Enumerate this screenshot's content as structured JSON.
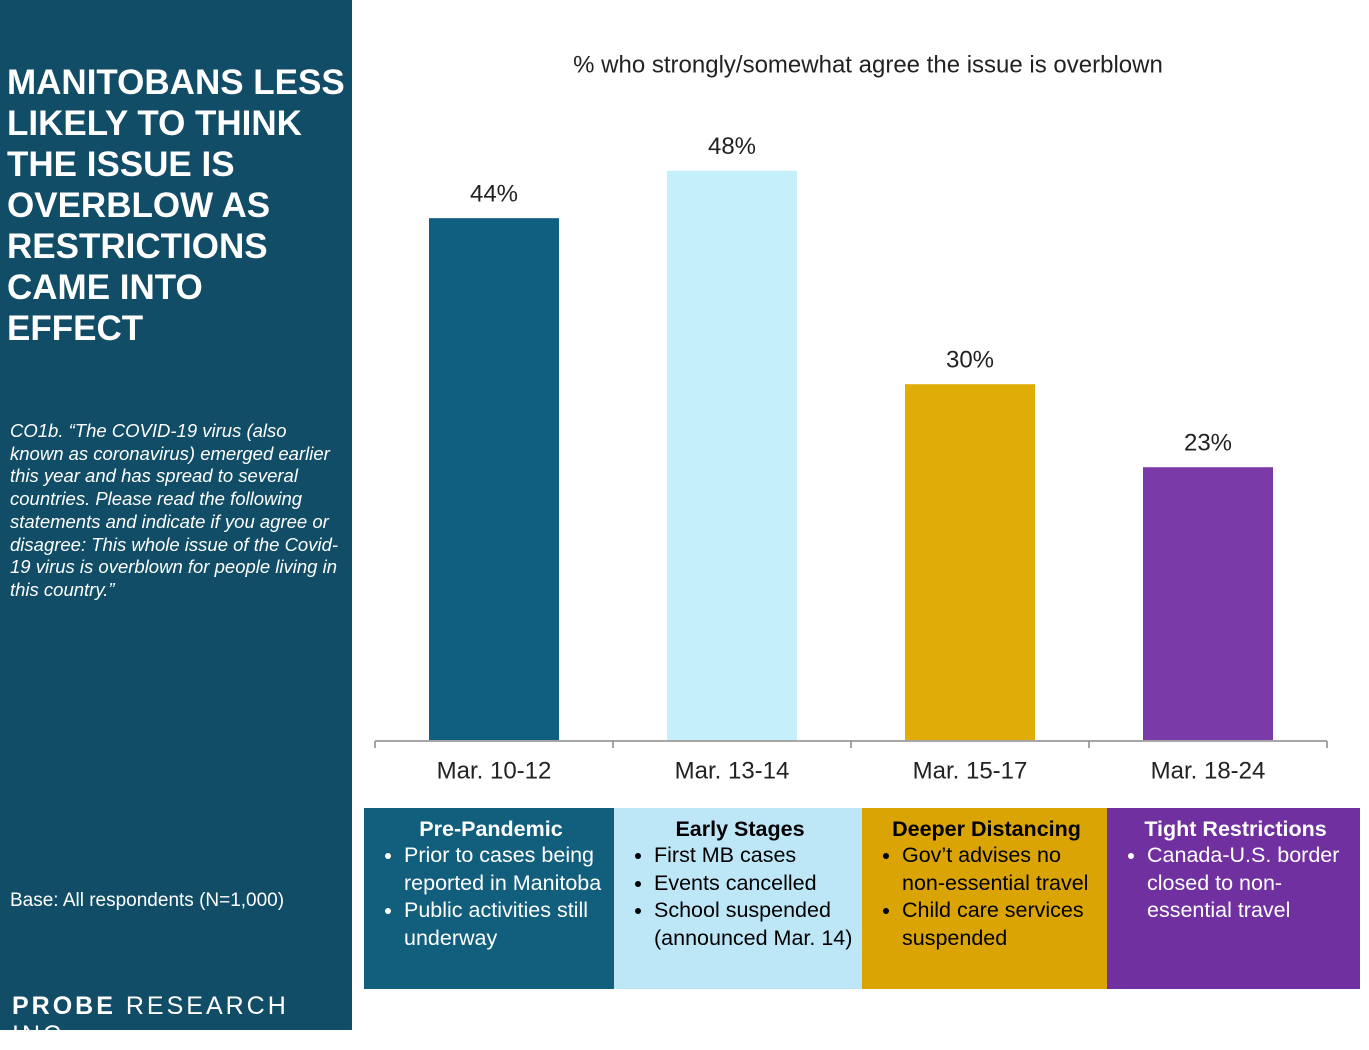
{
  "sidebar": {
    "title": "MANITOBANS LESS LIKELY TO THINK THE ISSUE IS OVERBLOW AS RESTRICTIONS CAME INTO EFFECT",
    "question": "CO1b. “The COVID-19 virus (also known as coronavirus) emerged earlier this year and has spread to several countries. Please read the following statements and indicate if you agree or disagree: This whole issue of the Covid-19 virus is overblown for people living in this country.”",
    "base": "Base: All respondents (N=1,000)",
    "logo_bold": "PROBE",
    "logo_rest": "RESEARCH INC."
  },
  "chart_data": {
    "type": "bar",
    "title": "% who strongly/somewhat agree the issue is overblown",
    "categories": [
      "Mar. 10-12",
      "Mar. 13-14",
      "Mar. 15-17",
      "Mar. 18-24"
    ],
    "values": [
      44,
      48,
      30,
      23
    ],
    "value_labels": [
      "44%",
      "48%",
      "30%",
      "23%"
    ],
    "colors": [
      "#0f6080",
      "#c5f0fb",
      "#e0ad08",
      "#7a3aa8"
    ],
    "ylim": [
      0,
      50
    ]
  },
  "phases": [
    {
      "title": "Pre-Pandemic",
      "color": "#115f7d",
      "text_color": "#ffffff",
      "bullets": [
        "Prior to cases being reported in Manitoba",
        "Public activities still underway"
      ]
    },
    {
      "title": "Early Stages",
      "color": "#bde7f7",
      "text_color": "#000000",
      "bullets": [
        "First MB cases",
        "Events cancelled",
        "School suspended (announced Mar. 14)"
      ]
    },
    {
      "title": "Deeper Distancing",
      "color": "#d9a404",
      "text_color": "#000000",
      "bullets": [
        "Gov’t advises no non-essential travel",
        "Child care services suspended"
      ]
    },
    {
      "title": "Tight Restrictions",
      "color": "#7030a0",
      "text_color": "#ffffff",
      "bullets": [
        "Canada-U.S. border closed to non-essential travel"
      ]
    }
  ]
}
